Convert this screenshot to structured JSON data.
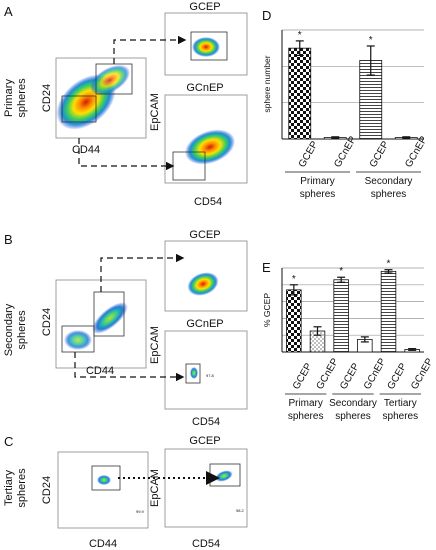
{
  "panel_labels": {
    "a": "A",
    "b": "B",
    "c": "C",
    "d": "D",
    "e": "E"
  },
  "row_labels": {
    "primary": [
      "Primary",
      "spheres"
    ],
    "secondary": [
      "Secondary",
      "spheres"
    ],
    "tertiary": [
      "Tertiary",
      "spheres"
    ]
  },
  "facs": {
    "axis_cd24": "CD24",
    "axis_cd44": "CD44",
    "axis_epcam": "EpCAM",
    "axis_cd54": "CD54",
    "gate_gcep": "GCEP",
    "gate_gcnep": "GCnEP",
    "gate_value_b": "97.8",
    "gate_value_c1": "99.9",
    "gate_value_c2": "98.2"
  },
  "chart_data": [
    {
      "type": "bar",
      "panel": "D",
      "ylabel": "sphere number",
      "ylim": [
        0,
        150
      ],
      "yticks": [
        0,
        50,
        100,
        150
      ],
      "tick_labels_shown": false,
      "grid": true,
      "categories": [
        "GCEP",
        "GCnEP",
        "GCEP",
        "GCnEP"
      ],
      "groups": [
        {
          "label": [
            "Primary",
            "spheres"
          ],
          "categories": [
            0,
            1
          ]
        },
        {
          "label": [
            "Secondary",
            "spheres"
          ],
          "categories": [
            2,
            3
          ]
        }
      ],
      "values": [
        125,
        2,
        108,
        2
      ],
      "errors": [
        10,
        1,
        20,
        1
      ],
      "significance": [
        "*",
        "",
        "*",
        ""
      ],
      "fills": [
        "checker",
        "white",
        "hlines",
        "white"
      ]
    },
    {
      "type": "bar",
      "panel": "E",
      "ylabel": "% GCEP",
      "ylim": [
        0,
        100
      ],
      "yticks": [
        0,
        20,
        40,
        60,
        80,
        100
      ],
      "tick_labels_shown": false,
      "grid": true,
      "categories": [
        "GCEP",
        "GCnEP",
        "GCEP",
        "GCnEP",
        "GCEP",
        "GCnEP"
      ],
      "groups": [
        {
          "label": [
            "Primary",
            "spheres"
          ],
          "categories": [
            0,
            1
          ]
        },
        {
          "label": [
            "Secondary",
            "spheres"
          ],
          "categories": [
            2,
            3
          ]
        },
        {
          "label": [
            "Tertiary",
            "spheres"
          ],
          "categories": [
            4,
            5
          ]
        }
      ],
      "values": [
        74,
        25,
        86,
        15,
        96,
        3
      ],
      "errors": [
        6,
        5,
        3,
        3,
        2,
        1
      ],
      "significance": [
        "*",
        "",
        "*",
        "",
        "*",
        ""
      ],
      "fills": [
        "checker",
        "dots",
        "hlines",
        "white",
        "hlines",
        "white"
      ]
    }
  ]
}
